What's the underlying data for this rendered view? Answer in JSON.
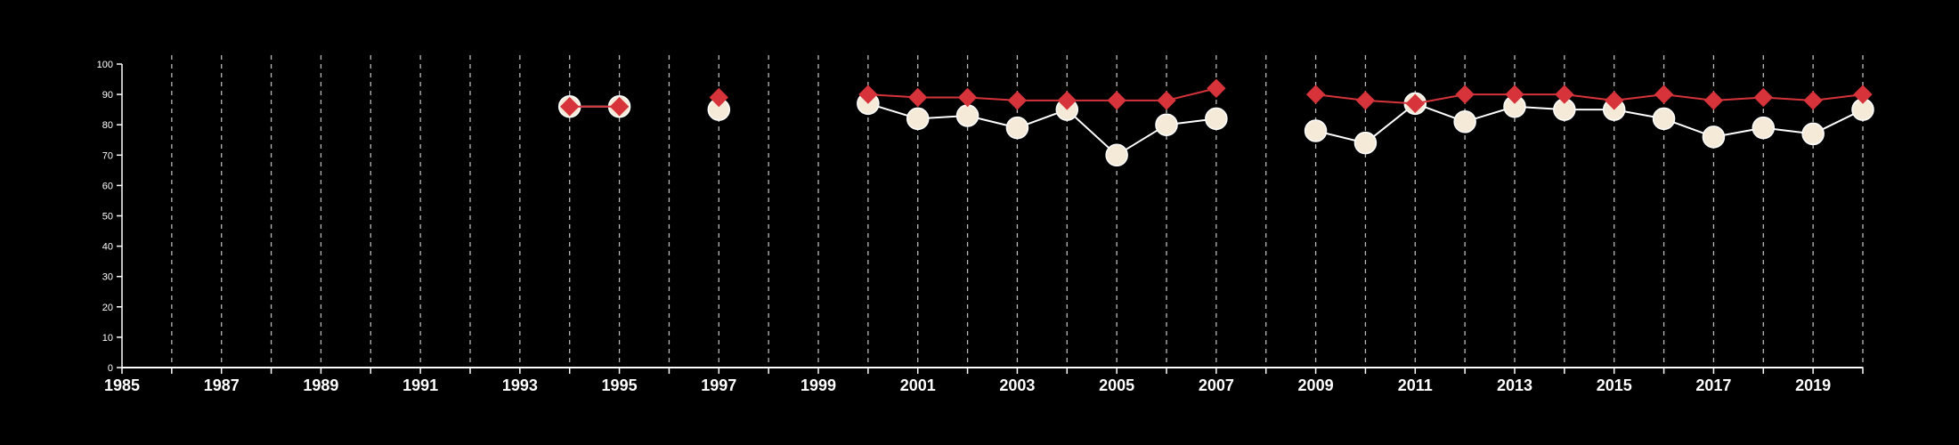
{
  "chart_data": {
    "type": "line",
    "title": "",
    "xlabel": "",
    "ylabel": "",
    "xlim": [
      1985,
      2020
    ],
    "ylim": [
      0,
      100
    ],
    "y_ticks": [
      0,
      10,
      20,
      30,
      40,
      50,
      60,
      70,
      80,
      90,
      100
    ],
    "x_tick_labels": [
      1985,
      1987,
      1989,
      1991,
      1993,
      1995,
      1997,
      1999,
      2001,
      2003,
      2005,
      2007,
      2009,
      2011,
      2013,
      2015,
      2017,
      2019
    ],
    "vertical_gridlines": "dashed, every year",
    "background": "#000000",
    "series": [
      {
        "marker": "circle",
        "color": "#f5ead8",
        "line_color": "#ffffff",
        "points": [
          [
            1994,
            86
          ],
          [
            1995,
            86
          ],
          [
            1997,
            85
          ],
          [
            2000,
            87
          ],
          [
            2001,
            82
          ],
          [
            2002,
            83
          ],
          [
            2003,
            79
          ],
          [
            2004,
            85
          ],
          [
            2005,
            70
          ],
          [
            2006,
            80
          ],
          [
            2007,
            82
          ],
          [
            2009,
            78
          ],
          [
            2010,
            74
          ],
          [
            2011,
            87
          ],
          [
            2012,
            81
          ],
          [
            2013,
            86
          ],
          [
            2014,
            85
          ],
          [
            2015,
            85
          ],
          [
            2016,
            82
          ],
          [
            2017,
            76
          ],
          [
            2018,
            79
          ],
          [
            2019,
            77
          ],
          [
            2020,
            85
          ]
        ]
      },
      {
        "marker": "diamond",
        "color": "#d6333a",
        "line_color": "#d6333a",
        "points": [
          [
            1994,
            86
          ],
          [
            1995,
            86
          ],
          [
            1997,
            89
          ],
          [
            2000,
            90
          ],
          [
            2001,
            89
          ],
          [
            2002,
            89
          ],
          [
            2003,
            88
          ],
          [
            2004,
            88
          ],
          [
            2005,
            88
          ],
          [
            2006,
            88
          ],
          [
            2007,
            92
          ],
          [
            2009,
            90
          ],
          [
            2010,
            88
          ],
          [
            2011,
            87
          ],
          [
            2012,
            90
          ],
          [
            2013,
            90
          ],
          [
            2014,
            90
          ],
          [
            2015,
            88
          ],
          [
            2016,
            90
          ],
          [
            2017,
            88
          ],
          [
            2018,
            89
          ],
          [
            2019,
            88
          ],
          [
            2020,
            90
          ]
        ]
      }
    ]
  }
}
